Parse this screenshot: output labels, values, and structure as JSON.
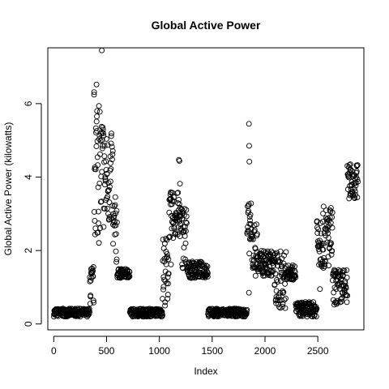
{
  "chart_data": {
    "type": "scatter",
    "title": "Global Active Power",
    "xlabel": "Index",
    "ylabel": "Global Active Power (kilowatts)",
    "xlim": [
      -56,
      2936
    ],
    "ylim": [
      -0.16,
      7.52
    ],
    "x_ticks": [
      0,
      500,
      1000,
      1500,
      2000,
      2500
    ],
    "y_ticks": [
      0,
      2,
      4,
      6
    ],
    "marker": "open-circle",
    "color": "#000000",
    "segments": [
      {
        "x_range": [
          0,
          340
        ],
        "y_range": [
          0.2,
          0.42
        ]
      },
      {
        "x_range": [
          340,
          380
        ],
        "y_range": [
          0.5,
          1.6
        ]
      },
      {
        "x_range": [
          380,
          430
        ],
        "y_range": [
          2.2,
          6.5
        ]
      },
      {
        "x_range": [
          430,
          480
        ],
        "y_range": [
          2.5,
          5.8
        ]
      },
      {
        "x_range": [
          480,
          560
        ],
        "y_range": [
          2.6,
          5.2
        ]
      },
      {
        "x_range": [
          560,
          600
        ],
        "y_range": [
          1.6,
          3.5
        ]
      },
      {
        "x_range": [
          600,
          720
        ],
        "y_range": [
          1.25,
          1.5
        ]
      },
      {
        "x_range": [
          720,
          1030
        ],
        "y_range": [
          0.2,
          0.42
        ]
      },
      {
        "x_range": [
          1030,
          1090
        ],
        "y_range": [
          0.5,
          2.4
        ]
      },
      {
        "x_range": [
          1090,
          1200
        ],
        "y_range": [
          2.3,
          3.6
        ]
      },
      {
        "x_range": [
          1200,
          1260
        ],
        "y_range": [
          1.5,
          3.3
        ]
      },
      {
        "x_range": [
          1260,
          1460
        ],
        "y_range": [
          1.25,
          1.7
        ]
      },
      {
        "x_range": [
          1460,
          1830
        ],
        "y_range": [
          0.2,
          0.42
        ]
      },
      {
        "x_range": [
          1830,
          1870
        ],
        "y_range": [
          1.9,
          3.3
        ]
      },
      {
        "x_range": [
          1870,
          1930
        ],
        "y_range": [
          1.3,
          2.8
        ]
      },
      {
        "x_range": [
          1930,
          2090
        ],
        "y_range": [
          1.3,
          2.0
        ]
      },
      {
        "x_range": [
          2090,
          2200
        ],
        "y_range": [
          0.4,
          2.0
        ]
      },
      {
        "x_range": [
          2200,
          2290
        ],
        "y_range": [
          1.2,
          1.6
        ]
      },
      {
        "x_range": [
          2290,
          2490
        ],
        "y_range": [
          0.2,
          0.6
        ]
      },
      {
        "x_range": [
          2490,
          2640
        ],
        "y_range": [
          1.5,
          3.2
        ]
      },
      {
        "x_range": [
          2640,
          2780
        ],
        "y_range": [
          0.5,
          1.5
        ]
      },
      {
        "x_range": [
          2780,
          2880
        ],
        "y_range": [
          3.4,
          4.35
        ]
      }
    ],
    "highlights": [
      {
        "x": 405,
        "y": 6.52
      },
      {
        "x": 410,
        "y": 5.8
      },
      {
        "x": 455,
        "y": 7.45
      },
      {
        "x": 1185,
        "y": 4.47
      },
      {
        "x": 1190,
        "y": 4.44
      },
      {
        "x": 1195,
        "y": 3.82
      },
      {
        "x": 1848,
        "y": 5.45
      },
      {
        "x": 1850,
        "y": 4.85
      },
      {
        "x": 1852,
        "y": 4.42
      },
      {
        "x": 2808,
        "y": 4.35
      },
      {
        "x": 2812,
        "y": 4.2
      },
      {
        "x": 1848,
        "y": 0.85
      },
      {
        "x": 1110,
        "y": 1.62
      },
      {
        "x": 2520,
        "y": 0.95
      }
    ]
  }
}
